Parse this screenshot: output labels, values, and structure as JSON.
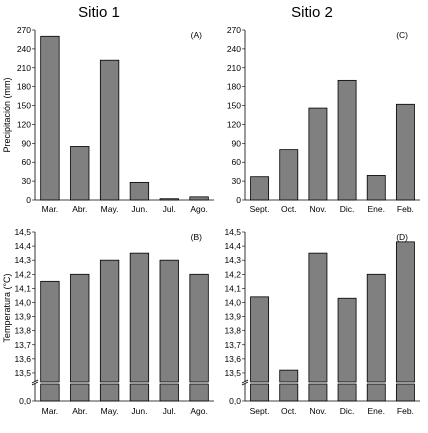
{
  "titles": {
    "site1": "Sitio 1",
    "site2": "Sitio 2"
  },
  "chart_data": [
    {
      "id": "A",
      "type": "bar",
      "panel_label": "(A)",
      "ylabel": "Precipitación (mm)",
      "categories": [
        "Mar.",
        "Abr.",
        "May.",
        "Jun.",
        "Jul.",
        "Ago."
      ],
      "values": [
        260,
        85,
        222,
        28,
        2,
        5
      ],
      "ylim": [
        0,
        270
      ],
      "yticks": [
        0,
        30,
        60,
        90,
        120,
        150,
        180,
        210,
        240,
        270
      ],
      "ytick_labels": [
        "0",
        "30",
        "60",
        "90",
        "120",
        "150",
        "180",
        "210",
        "240",
        "270"
      ]
    },
    {
      "id": "C",
      "type": "bar",
      "panel_label": "(C)",
      "ylabel": "",
      "categories": [
        "Sept.",
        "Oct.",
        "Nov.",
        "Dic.",
        "Ene.",
        "Feb."
      ],
      "values": [
        37,
        80,
        146,
        190,
        39,
        152
      ],
      "ylim": [
        0,
        270
      ],
      "yticks": [
        0,
        30,
        60,
        90,
        120,
        150,
        180,
        210,
        240,
        270
      ],
      "ytick_labels": [
        "0",
        "30",
        "60",
        "90",
        "120",
        "150",
        "180",
        "210",
        "240",
        "270"
      ]
    },
    {
      "id": "B",
      "type": "bar",
      "panel_label": "(B)",
      "ylabel": "Temperatura (°C)",
      "categories": [
        "Mar.",
        "Abr.",
        "May.",
        "Jun.",
        "Jul.",
        "Ago."
      ],
      "values": [
        14.15,
        14.2,
        14.3,
        14.35,
        14.3,
        14.2
      ],
      "ylim": [
        13.45,
        14.5
      ],
      "axis_break": true,
      "yticks": [
        13.5,
        13.6,
        13.7,
        13.8,
        13.9,
        14.0,
        14.1,
        14.2,
        14.3,
        14.4,
        14.5
      ],
      "ytick_labels": [
        "13,5",
        "13,6",
        "13,7",
        "13,8",
        "13,9",
        "14,0",
        "14,1",
        "14,2",
        "14,3",
        "14,4",
        "14,5"
      ],
      "ybase_label": "0,0"
    },
    {
      "id": "D",
      "type": "bar",
      "panel_label": "(D)",
      "ylabel": "",
      "categories": [
        "Sept.",
        "Oct.",
        "Nov.",
        "Dic.",
        "Ene.",
        "Feb."
      ],
      "values": [
        14.04,
        13.52,
        14.35,
        14.03,
        14.2,
        14.43
      ],
      "ylim": [
        13.45,
        14.5
      ],
      "axis_break": true,
      "yticks": [
        13.5,
        13.6,
        13.7,
        13.8,
        13.9,
        14.0,
        14.1,
        14.2,
        14.3,
        14.4,
        14.5
      ],
      "ytick_labels": [
        "13,5",
        "13,6",
        "13,7",
        "13,8",
        "13,9",
        "14,0",
        "14,1",
        "14,2",
        "14,3",
        "14,4",
        "14,5"
      ],
      "ybase_label": "0,0"
    }
  ]
}
